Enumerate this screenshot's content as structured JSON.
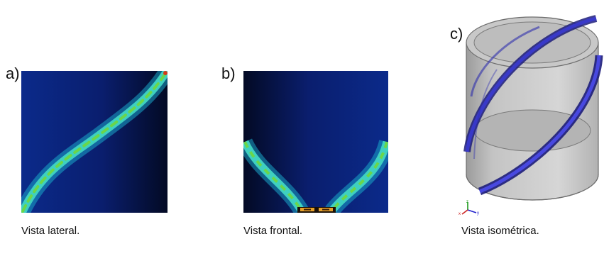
{
  "figure": {
    "panels": [
      {
        "label": "a)",
        "caption": "Vista lateral."
      },
      {
        "label": "b)",
        "caption": "Vista frontal."
      },
      {
        "label": "c)",
        "caption": "Vista isométrica."
      }
    ],
    "axis_triad": {
      "x": "x",
      "y": "y",
      "z": "z"
    },
    "footer_text": ""
  }
}
